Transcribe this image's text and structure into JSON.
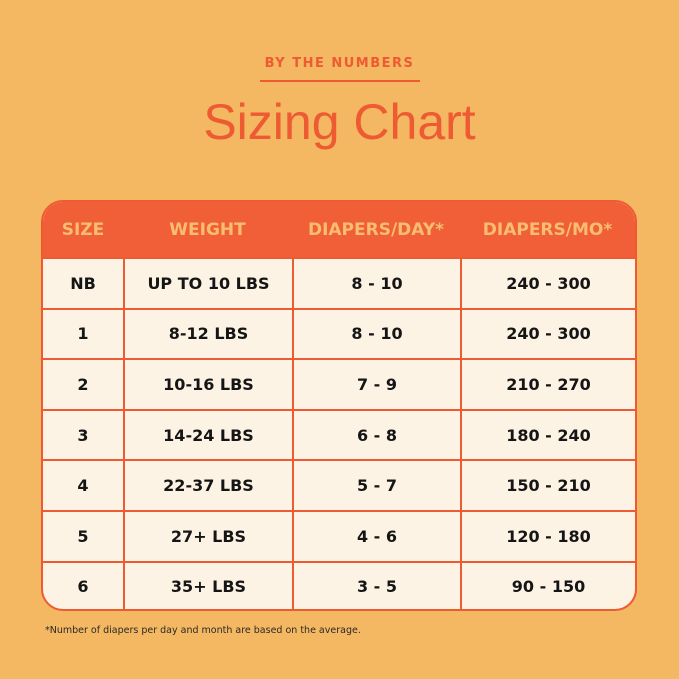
{
  "eyebrow": "BY THE NUMBERS",
  "title": "Sizing Chart",
  "colors": {
    "background": "#F4B762",
    "accent": "#EE5A32",
    "header_text": "#F7BE70",
    "cell_bg": "#FDF3E5"
  },
  "table": {
    "headers": [
      "SIZE",
      "WEIGHT",
      "DIAPERS/DAY*",
      "DIAPERS/MO*"
    ],
    "rows": [
      [
        "NB",
        "UP TO 10 LBS",
        "8 - 10",
        "240 - 300"
      ],
      [
        "1",
        "8-12 LBS",
        "8 - 10",
        "240 - 300"
      ],
      [
        "2",
        "10-16 LBS",
        "7 - 9",
        "210 - 270"
      ],
      [
        "3",
        "14-24 LBS",
        "6 - 8",
        "180 - 240"
      ],
      [
        "4",
        "22-37 LBS",
        "5 - 7",
        "150 - 210"
      ],
      [
        "5",
        "27+ LBS",
        "4 - 6",
        "120 - 180"
      ],
      [
        "6",
        "35+ LBS",
        "3 - 5",
        "90 - 150"
      ]
    ]
  },
  "footnote": "*Number of diapers per day and month are based on the average."
}
